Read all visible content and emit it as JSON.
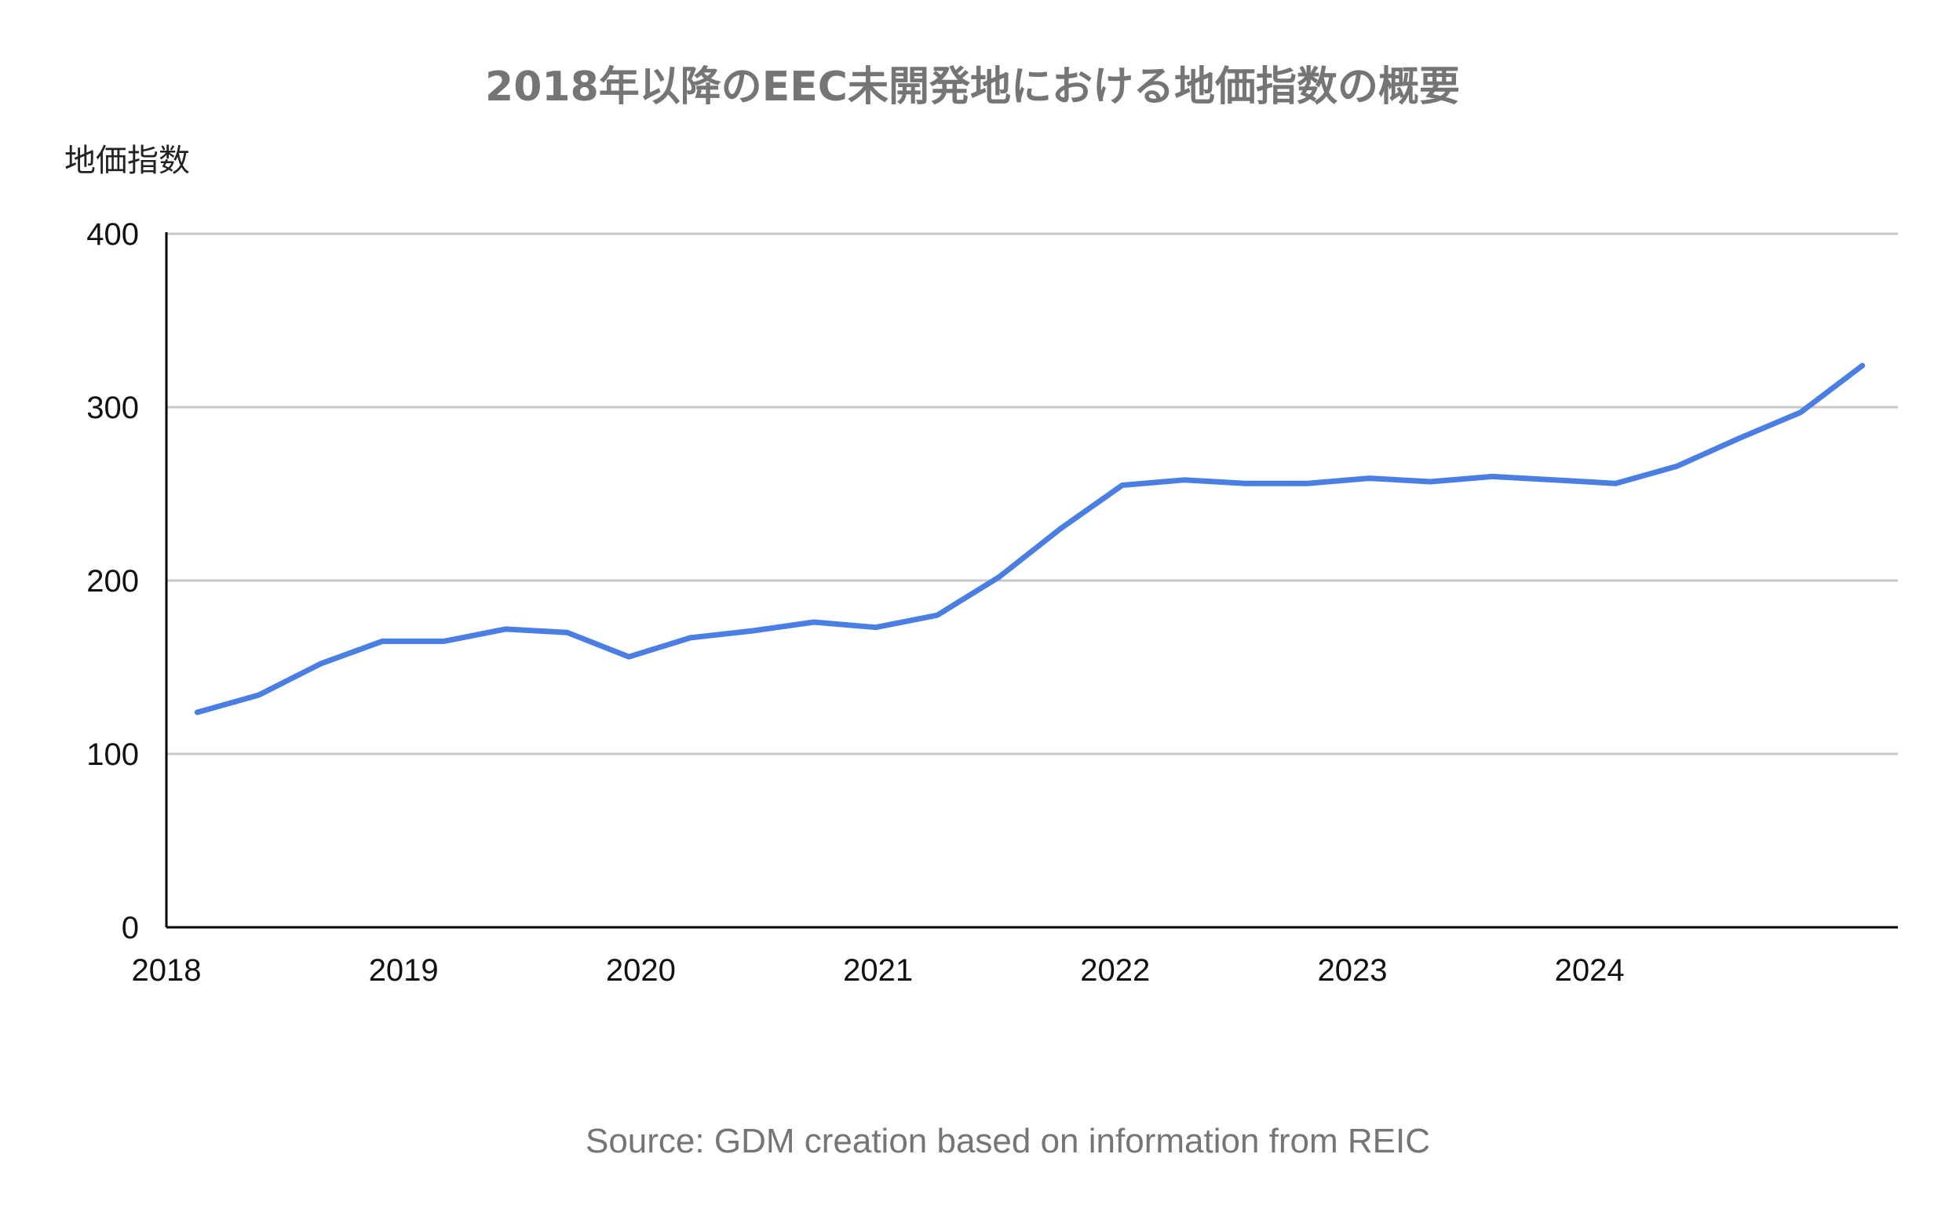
{
  "chart_data": {
    "type": "line",
    "title": "2018年以降のEEC未開発地における地価指数の概要",
    "ylabel": "地価指数",
    "xlabel": "",
    "ylim": [
      0,
      400
    ],
    "y_ticks": [
      "0",
      "100",
      "200",
      "300",
      "400"
    ],
    "x_ticks": [
      "2018",
      "2019",
      "2020",
      "2021",
      "2022",
      "2023",
      "2024"
    ],
    "x_range": [
      2018,
      2025.3
    ],
    "grid": true,
    "legend": "none",
    "line_color": "#4a7ee3",
    "series": [
      {
        "x": [
          2018.13,
          2018.39,
          2018.65,
          2018.91,
          2019.17,
          2019.43,
          2019.69,
          2019.95,
          2020.21,
          2020.47,
          2020.73,
          2020.99,
          2021.25,
          2021.51,
          2021.77,
          2022.03,
          2022.29,
          2022.55,
          2022.81,
          2023.07,
          2023.33,
          2023.59,
          2023.85,
          2024.11,
          2024.37,
          2024.63,
          2024.89,
          2025.15
        ],
        "values": [
          124,
          134,
          152,
          165,
          165,
          172,
          170,
          156,
          167,
          171,
          176,
          173,
          180,
          202,
          230,
          255,
          258,
          256,
          256,
          259,
          257,
          260,
          258,
          256,
          266,
          282,
          297,
          324
        ]
      }
    ]
  },
  "source": "Source: GDM creation based on information from REIC"
}
